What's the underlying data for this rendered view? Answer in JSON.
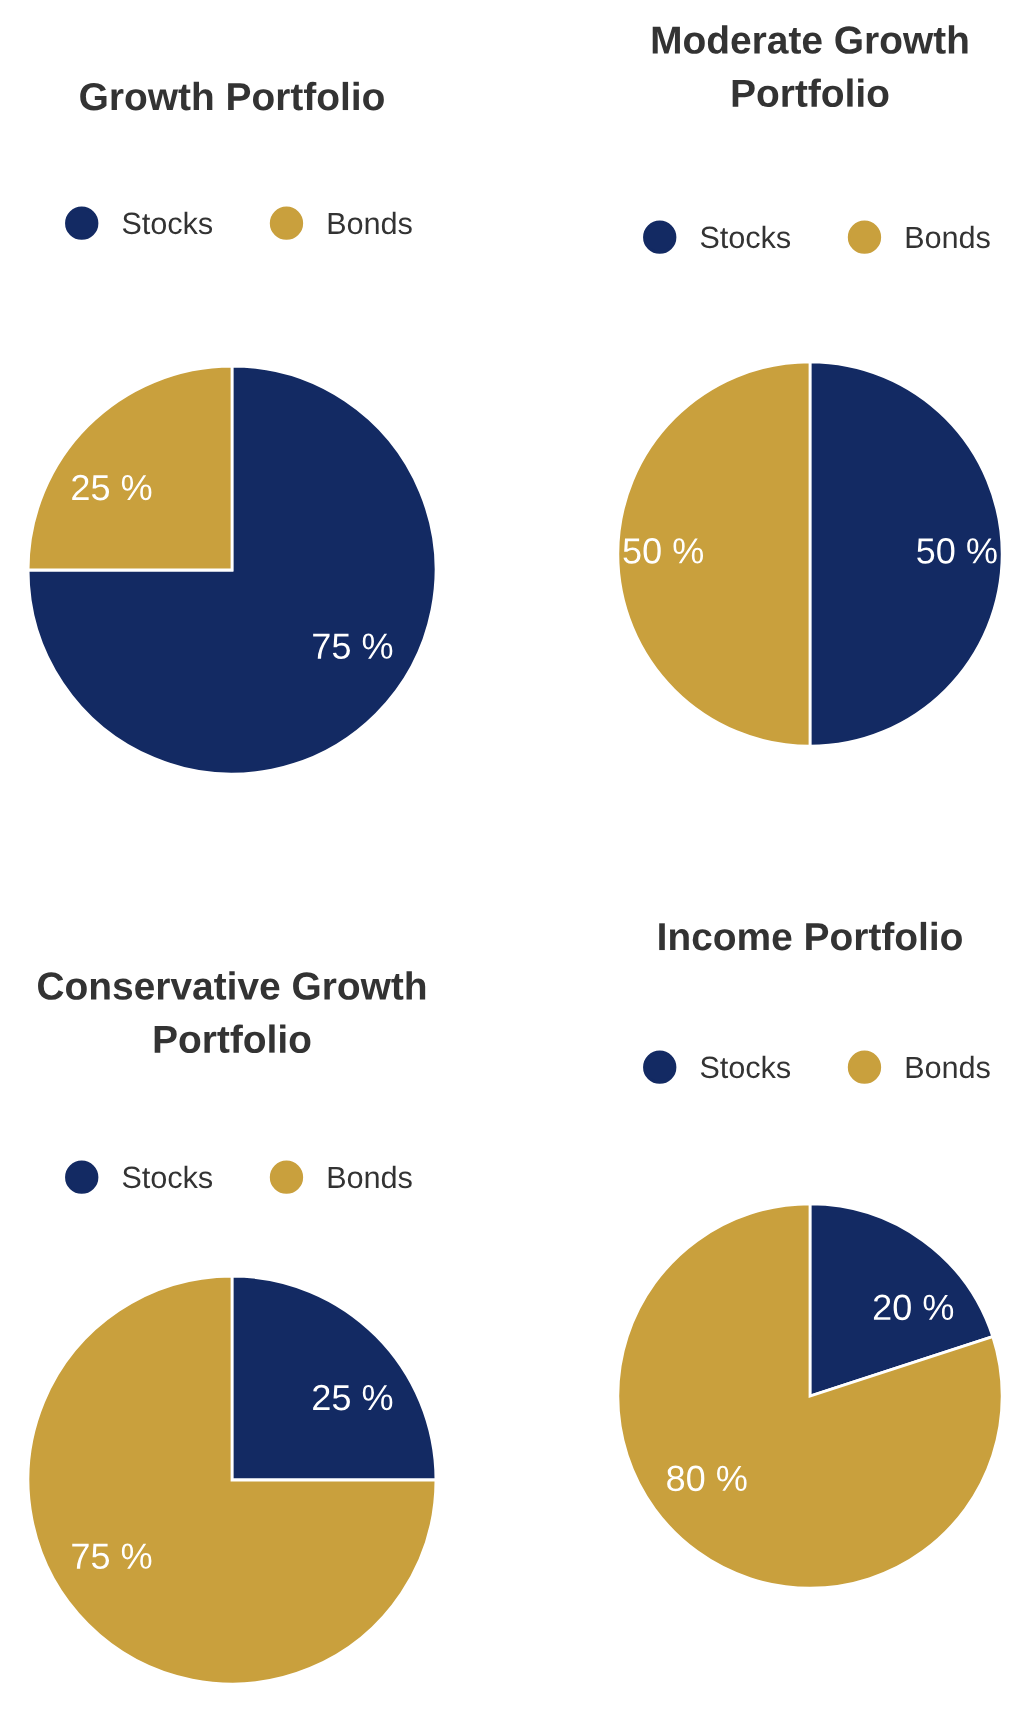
{
  "chart_data": [
    {
      "type": "pie",
      "title": "Growth Portfolio",
      "categories": [
        "Stocks",
        "Bonds"
      ],
      "values": [
        75,
        25
      ],
      "colors": [
        "#132a63",
        "#c9a03d"
      ],
      "value_labels": [
        "75 %",
        "25 %"
      ],
      "legend": "top"
    },
    {
      "type": "pie",
      "title": "Moderate Growth\nPortfolio",
      "categories": [
        "Stocks",
        "Bonds"
      ],
      "values": [
        50,
        50
      ],
      "colors": [
        "#132a63",
        "#c9a03d"
      ],
      "value_labels": [
        "50 %",
        "50 %"
      ],
      "legend": "top"
    },
    {
      "type": "pie",
      "title": "Conservative Growth\nPortfolio",
      "categories": [
        "Stocks",
        "Bonds"
      ],
      "values": [
        25,
        75
      ],
      "colors": [
        "#132a63",
        "#c9a03d"
      ],
      "value_labels": [
        "25 %",
        "75 %"
      ],
      "legend": "top"
    },
    {
      "type": "pie",
      "title": "Income Portfolio",
      "categories": [
        "Stocks",
        "Bonds"
      ],
      "values": [
        20,
        80
      ],
      "colors": [
        "#132a63",
        "#c9a03d"
      ],
      "value_labels": [
        "20 %",
        "80 %"
      ],
      "legend": "top"
    }
  ]
}
